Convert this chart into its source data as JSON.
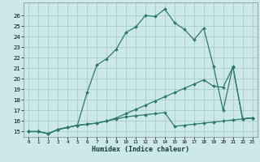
{
  "xlabel": "Humidex (Indice chaleur)",
  "bg_color": "#cce8e8",
  "grid_color": "#aacccc",
  "line_color": "#2d7a6a",
  "xlim": [
    -0.5,
    23.5
  ],
  "ylim": [
    14.5,
    27.2
  ],
  "xticks": [
    0,
    1,
    2,
    3,
    4,
    5,
    6,
    7,
    8,
    9,
    10,
    11,
    12,
    13,
    14,
    15,
    16,
    17,
    18,
    19,
    20,
    21,
    22,
    23
  ],
  "yticks": [
    15,
    16,
    17,
    18,
    19,
    20,
    21,
    22,
    23,
    24,
    25,
    26
  ],
  "line1_x": [
    0,
    1,
    2,
    3,
    4,
    5,
    6,
    7,
    8,
    9,
    10,
    11,
    12,
    13,
    14,
    15,
    16,
    17,
    18,
    19,
    20,
    21,
    22,
    23
  ],
  "line1_y": [
    15.0,
    15.0,
    14.8,
    15.2,
    15.4,
    15.6,
    18.7,
    21.3,
    21.9,
    22.8,
    24.4,
    24.9,
    26.0,
    25.9,
    26.6,
    25.3,
    24.7,
    23.7,
    24.8,
    21.2,
    17.0,
    21.2,
    16.2,
    16.3
  ],
  "line2_x": [
    0,
    1,
    2,
    3,
    4,
    5,
    6,
    7,
    8,
    9,
    10,
    11,
    12,
    13,
    14,
    15,
    16,
    17,
    18,
    19,
    20,
    21,
    22,
    23
  ],
  "line2_y": [
    15.0,
    15.0,
    14.8,
    15.2,
    15.4,
    15.6,
    15.7,
    15.8,
    16.0,
    16.3,
    16.7,
    17.1,
    17.5,
    17.9,
    18.3,
    18.7,
    19.1,
    19.5,
    19.9,
    19.3,
    19.2,
    21.1,
    16.2,
    16.3
  ],
  "line3_x": [
    0,
    1,
    2,
    3,
    4,
    5,
    6,
    7,
    8,
    9,
    10,
    11,
    12,
    13,
    14,
    15,
    16,
    17,
    18,
    19,
    20,
    21,
    22,
    23
  ],
  "line3_y": [
    15.0,
    15.0,
    14.8,
    15.2,
    15.4,
    15.6,
    15.7,
    15.8,
    16.0,
    16.2,
    16.4,
    16.5,
    16.6,
    16.7,
    16.8,
    15.5,
    15.6,
    15.7,
    15.8,
    15.9,
    16.0,
    16.1,
    16.2,
    16.3
  ]
}
